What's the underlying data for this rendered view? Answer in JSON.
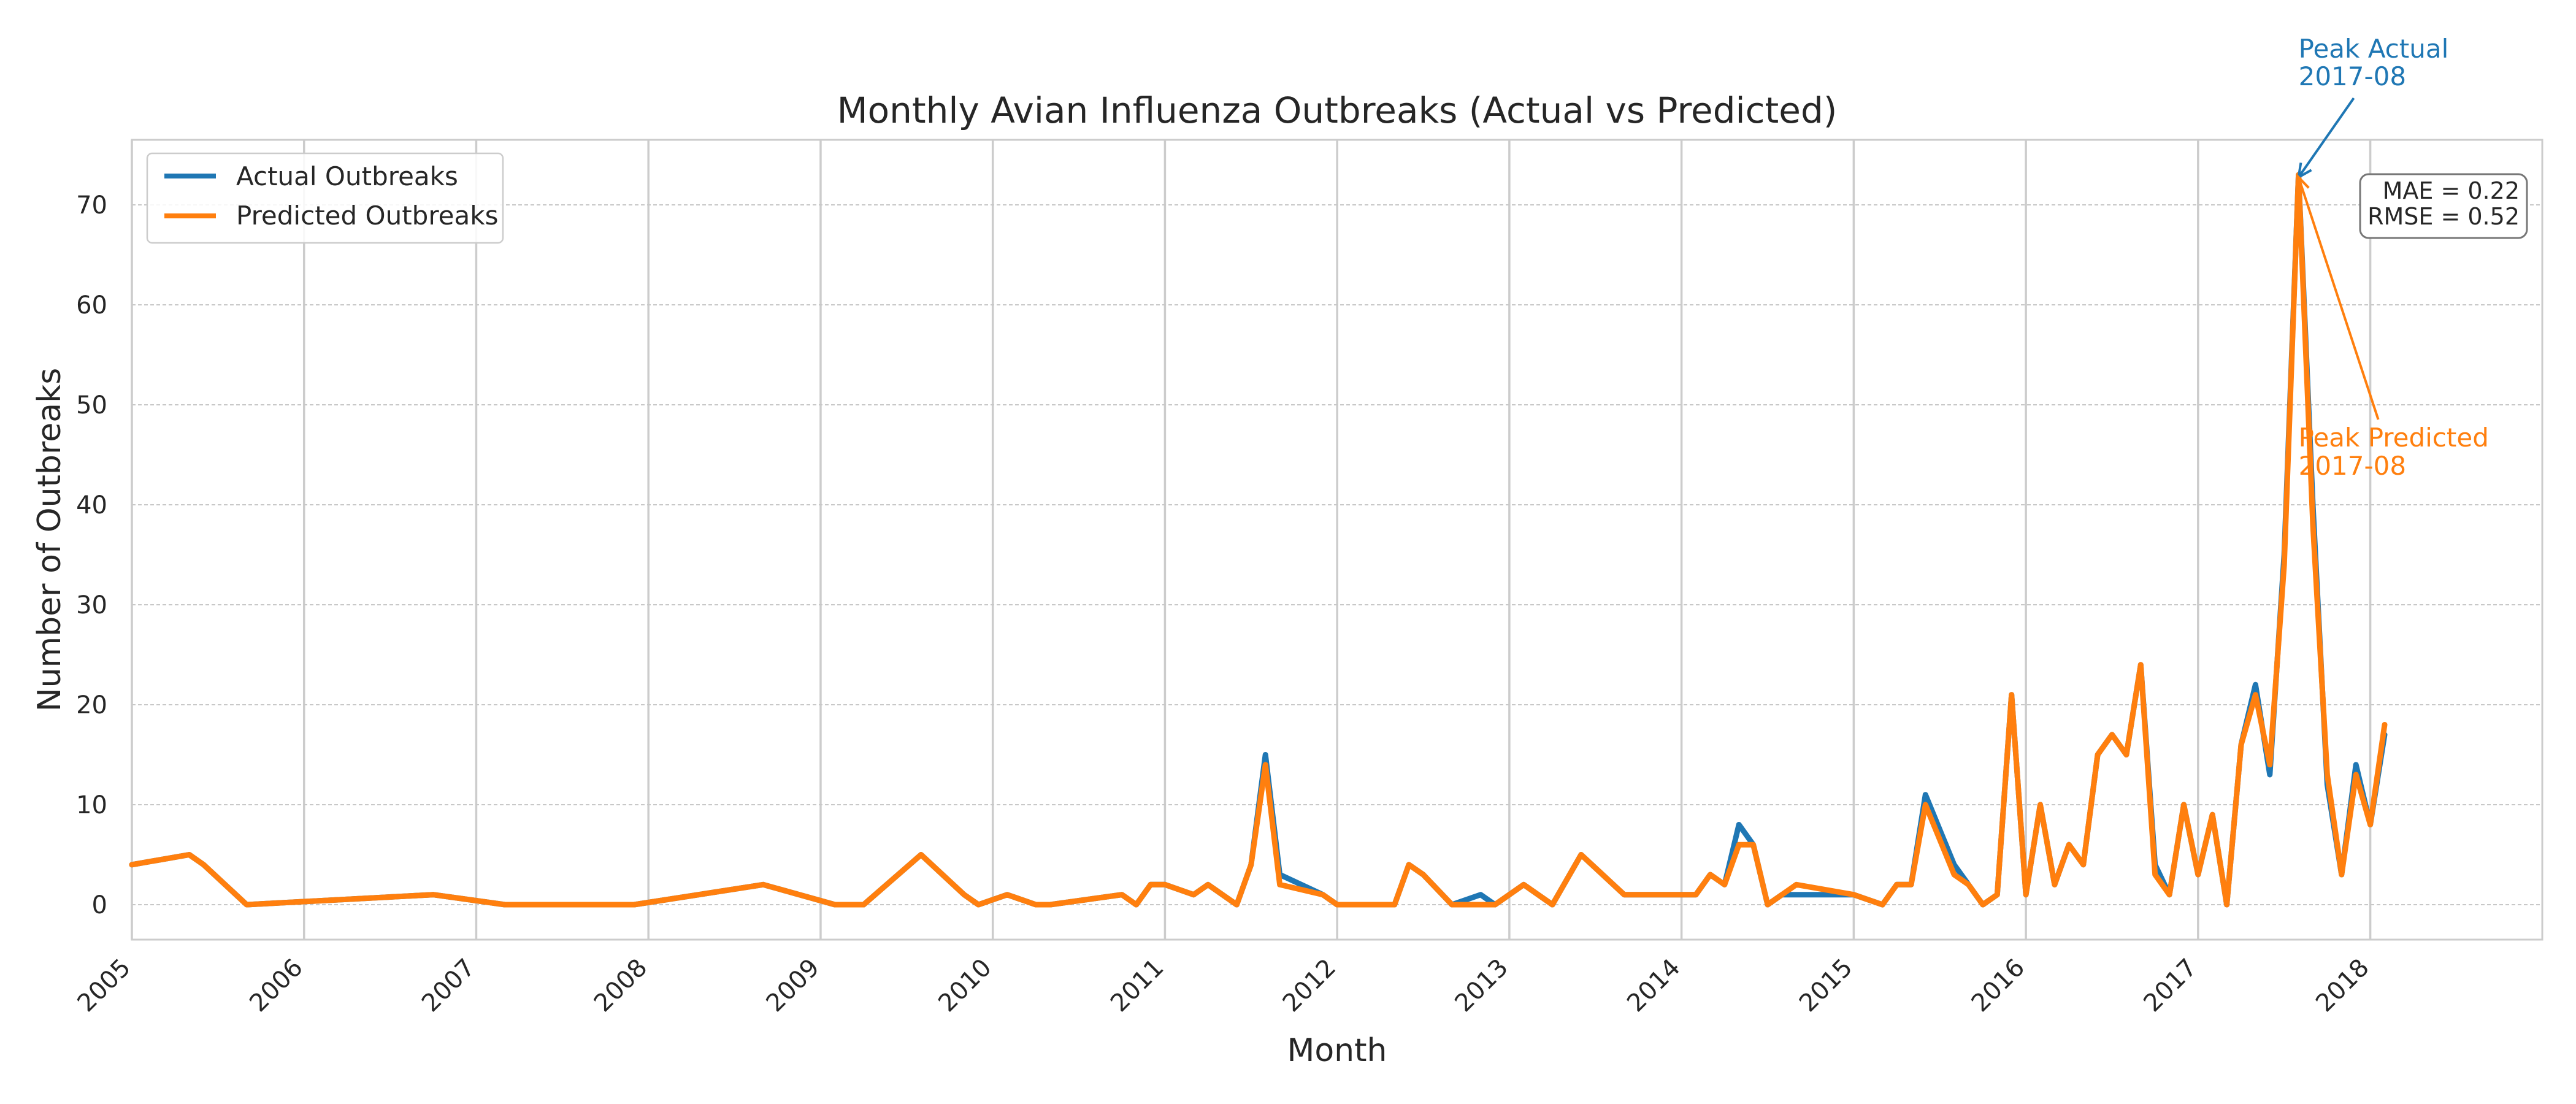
{
  "chart_data": {
    "type": "line",
    "title": "Monthly Avian Influenza Outbreaks (Actual vs Predicted)",
    "xlabel": "Month",
    "ylabel": "Number of Outbreaks",
    "xlim": [
      "2005-01-01",
      "2018-12-31"
    ],
    "ylim": [
      -3.5,
      76.5
    ],
    "yticks": [
      0,
      10,
      20,
      30,
      40,
      50,
      60,
      70
    ],
    "xtick_labels": [
      "2005",
      "2006",
      "2007",
      "2008",
      "2009",
      "2010",
      "2011",
      "2012",
      "2013",
      "2014",
      "2015",
      "2016",
      "2017",
      "2018"
    ],
    "grid": true,
    "legend_placement": "top-left",
    "colors": {
      "actual": "#1f77b4",
      "predicted": "#ff7f0e"
    },
    "series": [
      {
        "name": "Actual Outbreaks",
        "points": [
          [
            "2005-01",
            4
          ],
          [
            "2005-05",
            5
          ],
          [
            "2005-06",
            4
          ],
          [
            "2005-09",
            0
          ],
          [
            "2006-10",
            1
          ],
          [
            "2007-03",
            0
          ],
          [
            "2007-12",
            0
          ],
          [
            "2008-09",
            2
          ],
          [
            "2009-02",
            0
          ],
          [
            "2009-04",
            0
          ],
          [
            "2009-08",
            5
          ],
          [
            "2009-11",
            1
          ],
          [
            "2009-12",
            0
          ],
          [
            "2010-02",
            1
          ],
          [
            "2010-04",
            0
          ],
          [
            "2010-05",
            0
          ],
          [
            "2010-10",
            1
          ],
          [
            "2010-11",
            0
          ],
          [
            "2010-12",
            2
          ],
          [
            "2011-01",
            2
          ],
          [
            "2011-03",
            1
          ],
          [
            "2011-04",
            2
          ],
          [
            "2011-06",
            0
          ],
          [
            "2011-07",
            4
          ],
          [
            "2011-08",
            15
          ],
          [
            "2011-09",
            3
          ],
          [
            "2011-12",
            1
          ],
          [
            "2012-01",
            0
          ],
          [
            "2012-05",
            0
          ],
          [
            "2012-06",
            4
          ],
          [
            "2012-07",
            3
          ],
          [
            "2012-09",
            0
          ],
          [
            "2012-11",
            1
          ],
          [
            "2012-12",
            0
          ],
          [
            "2013-02",
            2
          ],
          [
            "2013-04",
            0
          ],
          [
            "2013-06",
            5
          ],
          [
            "2013-09",
            1
          ],
          [
            "2014-02",
            1
          ],
          [
            "2014-03",
            3
          ],
          [
            "2014-04",
            2
          ],
          [
            "2014-05",
            8
          ],
          [
            "2014-06",
            6
          ],
          [
            "2014-07",
            0
          ],
          [
            "2014-08",
            1
          ],
          [
            "2014-09",
            1
          ],
          [
            "2015-01",
            1
          ],
          [
            "2015-03",
            0
          ],
          [
            "2015-04",
            2
          ],
          [
            "2015-05",
            2
          ],
          [
            "2015-06",
            11
          ],
          [
            "2015-08",
            4
          ],
          [
            "2015-09",
            2
          ],
          [
            "2015-10",
            0
          ],
          [
            "2015-11",
            1
          ],
          [
            "2015-12",
            21
          ],
          [
            "2016-01",
            1
          ],
          [
            "2016-02",
            10
          ],
          [
            "2016-03",
            2
          ],
          [
            "2016-04",
            6
          ],
          [
            "2016-05",
            4
          ],
          [
            "2016-06",
            15
          ],
          [
            "2016-07",
            17
          ],
          [
            "2016-08",
            15
          ],
          [
            "2016-09",
            24
          ],
          [
            "2016-10",
            4
          ],
          [
            "2016-11",
            1
          ],
          [
            "2016-12",
            10
          ],
          [
            "2017-01",
            3
          ],
          [
            "2017-02",
            9
          ],
          [
            "2017-03",
            0
          ],
          [
            "2017-04",
            16
          ],
          [
            "2017-05",
            22
          ],
          [
            "2017-06",
            13
          ],
          [
            "2017-07",
            35
          ],
          [
            "2017-08",
            73
          ],
          [
            "2017-09",
            40
          ],
          [
            "2017-10",
            12
          ],
          [
            "2017-11",
            3
          ],
          [
            "2017-12",
            14
          ],
          [
            "2018-01",
            8
          ],
          [
            "2018-02",
            17
          ]
        ]
      },
      {
        "name": "Predicted Outbreaks",
        "points": [
          [
            "2005-01",
            4
          ],
          [
            "2005-05",
            5
          ],
          [
            "2005-06",
            4
          ],
          [
            "2005-09",
            0
          ],
          [
            "2006-10",
            1
          ],
          [
            "2007-03",
            0
          ],
          [
            "2007-12",
            0
          ],
          [
            "2008-09",
            2
          ],
          [
            "2009-02",
            0
          ],
          [
            "2009-04",
            0
          ],
          [
            "2009-08",
            5
          ],
          [
            "2009-11",
            1
          ],
          [
            "2009-12",
            0
          ],
          [
            "2010-02",
            1
          ],
          [
            "2010-04",
            0
          ],
          [
            "2010-05",
            0
          ],
          [
            "2010-10",
            1
          ],
          [
            "2010-11",
            0
          ],
          [
            "2010-12",
            2
          ],
          [
            "2011-01",
            2
          ],
          [
            "2011-03",
            1
          ],
          [
            "2011-04",
            2
          ],
          [
            "2011-06",
            0
          ],
          [
            "2011-07",
            4
          ],
          [
            "2011-08",
            14
          ],
          [
            "2011-09",
            2
          ],
          [
            "2011-12",
            1
          ],
          [
            "2012-01",
            0
          ],
          [
            "2012-05",
            0
          ],
          [
            "2012-06",
            4
          ],
          [
            "2012-07",
            3
          ],
          [
            "2012-09",
            0
          ],
          [
            "2012-11",
            0
          ],
          [
            "2012-12",
            0
          ],
          [
            "2013-02",
            2
          ],
          [
            "2013-04",
            0
          ],
          [
            "2013-06",
            5
          ],
          [
            "2013-09",
            1
          ],
          [
            "2014-02",
            1
          ],
          [
            "2014-03",
            3
          ],
          [
            "2014-04",
            2
          ],
          [
            "2014-05",
            6
          ],
          [
            "2014-06",
            6
          ],
          [
            "2014-07",
            0
          ],
          [
            "2014-08",
            1
          ],
          [
            "2014-09",
            2
          ],
          [
            "2015-01",
            1
          ],
          [
            "2015-03",
            0
          ],
          [
            "2015-04",
            2
          ],
          [
            "2015-05",
            2
          ],
          [
            "2015-06",
            10
          ],
          [
            "2015-08",
            3
          ],
          [
            "2015-09",
            2
          ],
          [
            "2015-10",
            0
          ],
          [
            "2015-11",
            1
          ],
          [
            "2015-12",
            21
          ],
          [
            "2016-01",
            1
          ],
          [
            "2016-02",
            10
          ],
          [
            "2016-03",
            2
          ],
          [
            "2016-04",
            6
          ],
          [
            "2016-05",
            4
          ],
          [
            "2016-06",
            15
          ],
          [
            "2016-07",
            17
          ],
          [
            "2016-08",
            15
          ],
          [
            "2016-09",
            24
          ],
          [
            "2016-10",
            3
          ],
          [
            "2016-11",
            1
          ],
          [
            "2016-12",
            10
          ],
          [
            "2017-01",
            3
          ],
          [
            "2017-02",
            9
          ],
          [
            "2017-03",
            0
          ],
          [
            "2017-04",
            16
          ],
          [
            "2017-05",
            21
          ],
          [
            "2017-06",
            14
          ],
          [
            "2017-07",
            34
          ],
          [
            "2017-08",
            73
          ],
          [
            "2017-09",
            38
          ],
          [
            "2017-10",
            13
          ],
          [
            "2017-11",
            3
          ],
          [
            "2017-12",
            13
          ],
          [
            "2018-01",
            8
          ],
          [
            "2018-02",
            18
          ]
        ]
      }
    ],
    "annotations": {
      "peak_actual": {
        "line1": "Peak Actual",
        "line2": "2017-08",
        "x": "2017-08",
        "y": 73
      },
      "peak_predicted": {
        "line1": "Peak Predicted",
        "line2": "2017-08",
        "x": "2017-08",
        "y": 73
      },
      "stats": {
        "mae": "MAE = 0.22",
        "rmse": "RMSE = 0.52"
      }
    }
  }
}
